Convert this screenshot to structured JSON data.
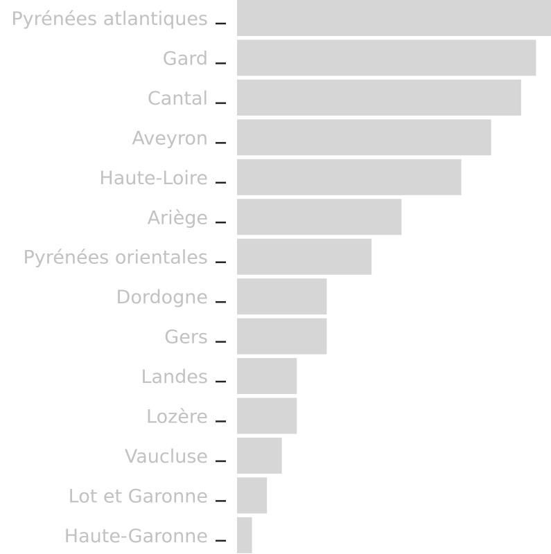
{
  "chart_data": {
    "type": "bar",
    "orientation": "horizontal",
    "title": "",
    "xlabel": "",
    "ylabel": "",
    "grid": false,
    "categories": [
      "Pyrénées atlantiques",
      "Gard",
      "Cantal",
      "Aveyron",
      "Haute-Loire",
      "Ariège",
      "Pyrénées orientales",
      "Dordogne",
      "Gers",
      "Landes",
      "Lozère",
      "Vaucluse",
      "Lot et Garonne",
      "Haute-Garonne"
    ],
    "values": [
      21,
      20,
      19,
      17,
      15,
      11,
      9,
      6,
      6,
      4,
      4,
      3,
      2,
      1
    ],
    "xlim": [
      0,
      21
    ],
    "colors": {
      "bar": "#d6d6d6",
      "label": "#c2c2c2",
      "tick": "#222222"
    }
  }
}
